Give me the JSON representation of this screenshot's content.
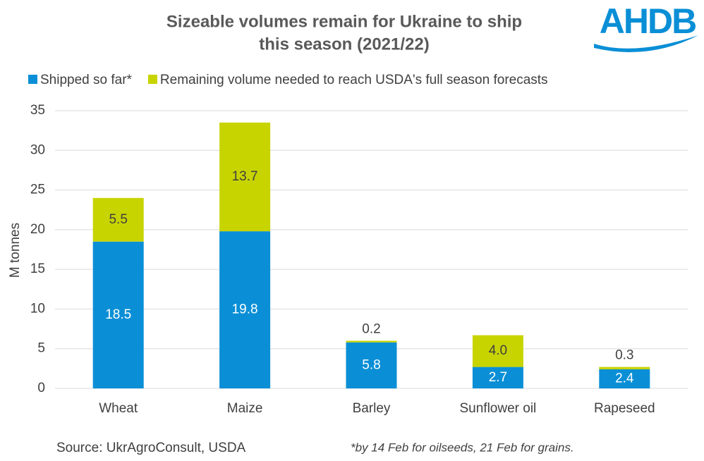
{
  "chart_data": {
    "type": "stacked-bar",
    "title": [
      "Sizeable volumes remain for Ukraine to ship",
      "this season (2021/22)"
    ],
    "logo": "AHDB",
    "ylabel": "M tonnes",
    "categories": [
      "Wheat",
      "Maize",
      "Barley",
      "Sunflower oil",
      "Rapeseed"
    ],
    "series": [
      {
        "name": "Shipped so far*",
        "color": "#0a8fd6",
        "values": [
          18.5,
          19.8,
          5.8,
          2.7,
          2.4
        ],
        "value_labels": [
          "18.5",
          "19.8",
          "5.8",
          "2.7",
          "2.4"
        ]
      },
      {
        "name": "Remaining volume needed to reach USDA's full season forecasts",
        "color": "#c8d400",
        "values": [
          5.5,
          13.7,
          0.2,
          4.0,
          0.3
        ],
        "value_labels": [
          "5.5",
          "13.7",
          "0.2",
          "4.0",
          "0.3"
        ]
      }
    ],
    "ylim": [
      0,
      35
    ],
    "yticks": [
      0,
      5,
      10,
      15,
      20,
      25,
      30,
      35
    ],
    "grid": true,
    "source": "Source: UkrAgroConsult, USDA",
    "note": "*by 14 Feb for oilseeds, 21 Feb for grains."
  }
}
